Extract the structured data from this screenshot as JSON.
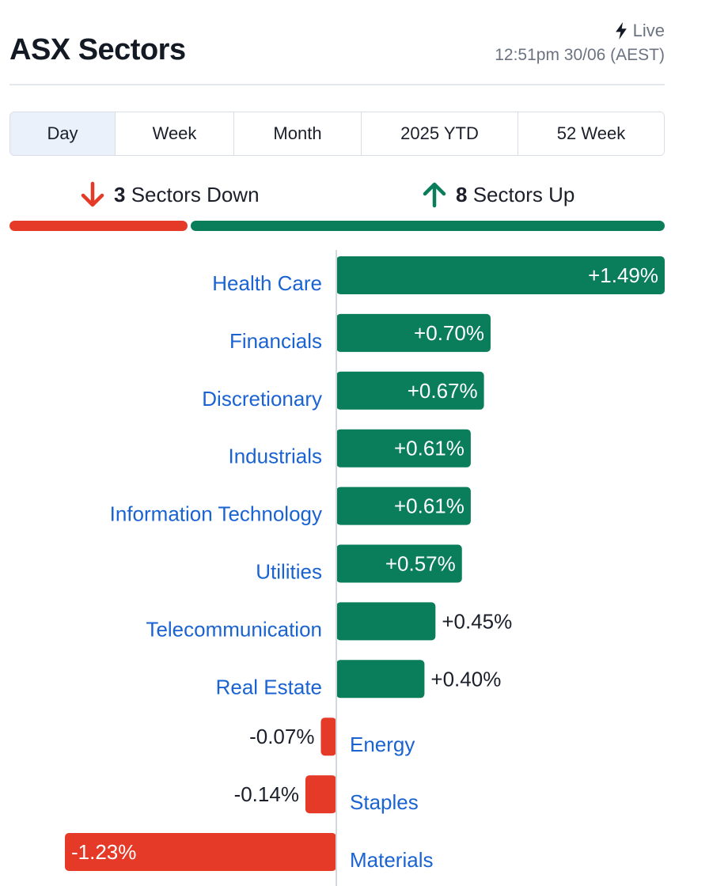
{
  "header": {
    "title": "ASX Sectors",
    "live_label": "Live",
    "timestamp": "12:51pm 30/06 (AEST)"
  },
  "tabs": [
    {
      "label": "Day",
      "active": true
    },
    {
      "label": "Week",
      "active": false
    },
    {
      "label": "Month",
      "active": false
    },
    {
      "label": "2025 YTD",
      "active": false
    },
    {
      "label": "52 Week",
      "active": false
    }
  ],
  "summary": {
    "down_count": "3",
    "down_label": "Sectors Down",
    "up_count": "8",
    "up_label": "Sectors Up"
  },
  "colors": {
    "up": "#0a7d5a",
    "down": "#e53a27",
    "link": "#1a63d1",
    "axis": "#d4d8df"
  },
  "chart_data": {
    "type": "bar",
    "orientation": "horizontal",
    "unit": "%",
    "categories": [
      "Health Care",
      "Financials",
      "Discretionary",
      "Industrials",
      "Information Technology",
      "Utilities",
      "Telecommunication",
      "Real Estate",
      "Energy",
      "Staples",
      "Materials"
    ],
    "values": [
      1.49,
      0.7,
      0.67,
      0.61,
      0.61,
      0.57,
      0.45,
      0.4,
      -0.07,
      -0.14,
      -1.23
    ],
    "labels": [
      "+1.49%",
      "+0.70%",
      "+0.67%",
      "+0.61%",
      "+0.61%",
      "+0.57%",
      "+0.45%",
      "+0.40%",
      "-0.07%",
      "-0.14%",
      "-1.23%"
    ],
    "title": "",
    "xlabel": "",
    "ylabel": "",
    "xlim": [
      -1.23,
      1.49
    ],
    "grid": false,
    "legend": "none"
  }
}
